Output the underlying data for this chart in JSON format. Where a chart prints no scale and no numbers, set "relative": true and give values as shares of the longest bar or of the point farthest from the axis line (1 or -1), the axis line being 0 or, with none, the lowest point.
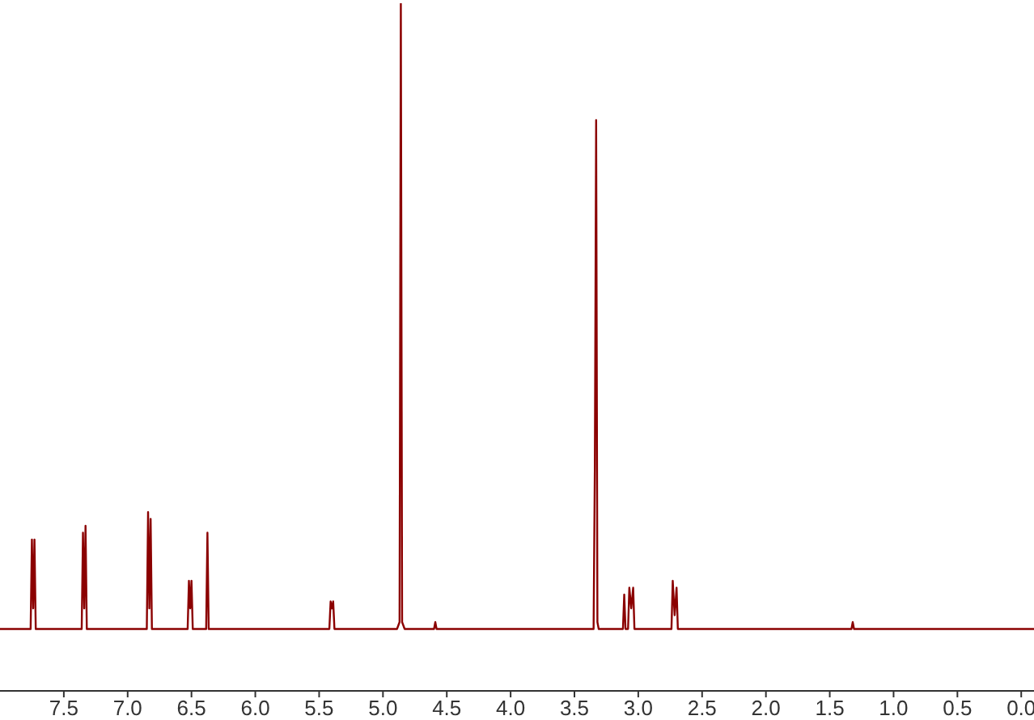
{
  "chart_data": {
    "type": "line",
    "relative": true,
    "color": "#8b0000",
    "x": [
      8.0,
      7.76,
      7.75,
      7.74,
      7.73,
      7.72,
      7.36,
      7.35,
      7.34,
      7.33,
      7.32,
      6.85,
      6.84,
      6.83,
      6.82,
      6.81,
      6.53,
      6.52,
      6.51,
      6.5,
      6.49,
      6.385,
      6.375,
      6.365,
      5.42,
      5.41,
      5.4,
      5.39,
      5.38,
      4.89,
      4.87,
      4.86,
      4.85,
      4.83,
      4.6,
      4.59,
      4.58,
      3.35,
      3.34,
      3.33,
      3.32,
      3.31,
      3.12,
      3.11,
      3.1,
      3.08,
      3.07,
      3.055,
      3.04,
      3.03,
      2.74,
      2.73,
      2.715,
      2.7,
      2.69,
      1.33,
      1.32,
      1.31,
      -0.1
    ],
    "values": [
      0.09,
      0.09,
      0.22,
      0.12,
      0.22,
      0.09,
      0.09,
      0.23,
      0.12,
      0.24,
      0.09,
      0.09,
      0.26,
      0.12,
      0.25,
      0.09,
      0.09,
      0.16,
      0.12,
      0.16,
      0.09,
      0.09,
      0.23,
      0.09,
      0.09,
      0.13,
      0.12,
      0.13,
      0.09,
      0.09,
      0.1,
      1,
      0.1,
      0.09,
      0.09,
      0.1,
      0.09,
      0.09,
      0.33,
      0.83,
      0.1,
      0.09,
      0.09,
      0.14,
      0.09,
      0.09,
      0.15,
      0.12,
      0.15,
      0.09,
      0.09,
      0.16,
      0.11,
      0.15,
      0.09,
      0.09,
      0.1,
      0.09,
      0.09
    ],
    "xlim": [
      8.0,
      -0.1
    ],
    "xticks": [
      {
        "value": 7.5,
        "label": "7.5"
      },
      {
        "value": 7,
        "label": "7.0"
      },
      {
        "value": 6.5,
        "label": "6.5"
      },
      {
        "value": 6,
        "label": "6.0"
      },
      {
        "value": 5.5,
        "label": "5.5"
      },
      {
        "value": 5,
        "label": "5.0"
      },
      {
        "value": 4.5,
        "label": "4.5"
      },
      {
        "value": 4,
        "label": "4.0"
      },
      {
        "value": 3.5,
        "label": "3.5"
      },
      {
        "value": 3,
        "label": "3.0"
      },
      {
        "value": 2.5,
        "label": "2.5"
      },
      {
        "value": 2,
        "label": "2.0"
      },
      {
        "value": 1.5,
        "label": "1.5"
      },
      {
        "value": 1,
        "label": "1.0"
      },
      {
        "value": 0.5,
        "label": "0.5"
      },
      {
        "value": 0,
        "label": "0.0"
      }
    ]
  }
}
